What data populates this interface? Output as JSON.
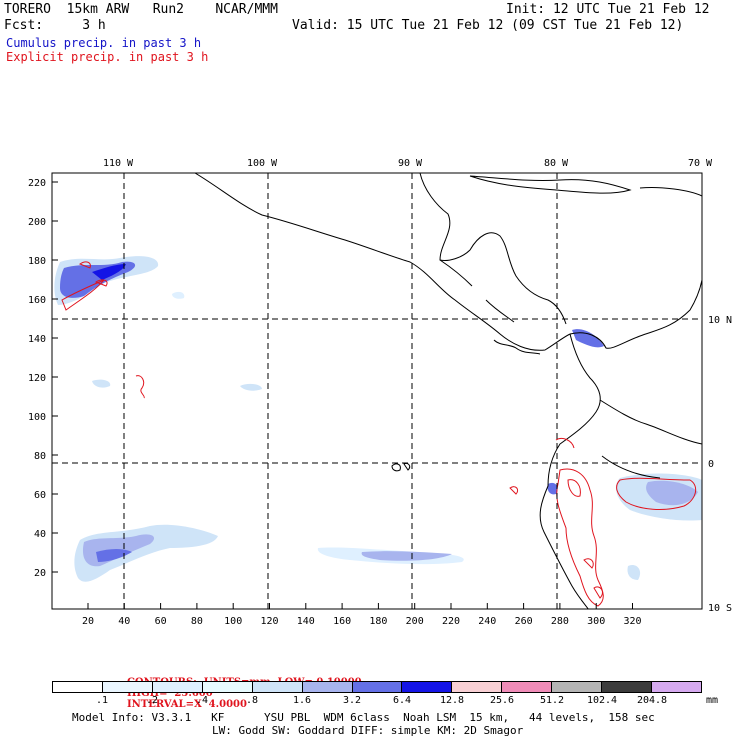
{
  "header": {
    "model": "TORERO  15km ARW   Run2    NCAR/MMM",
    "init": "Init: 12 UTC Tue 21 Feb 12",
    "fcst": "Fcst:     3 h",
    "valid": "Valid: 15 UTC Tue 21 Feb 12 (09 CST Tue 21 Feb 12)",
    "cumulus_label": "Cumulus precip. in past 3 h",
    "explicit_label": "Explicit precip. in past 3 h",
    "cumulus_color": "#1414c8",
    "explicit_color": "#e0141e"
  },
  "map": {
    "lon_labels": [
      "110 W",
      "100 W",
      "90 W",
      "80 W",
      "70 W"
    ],
    "lat_labels": [
      "10 N",
      "0",
      "10 S"
    ],
    "y_ticks": [
      "220",
      "200",
      "180",
      "160",
      "140",
      "120",
      "100",
      "80",
      "60",
      "40",
      "20"
    ],
    "x_ticks": [
      "20",
      "40",
      "60",
      "80",
      "100",
      "120",
      "140",
      "160",
      "180",
      "200",
      "220",
      "240",
      "260",
      "280",
      "300",
      "320"
    ]
  },
  "contours": {
    "units": "CONTOURS:  UNITS=mm  LOW= 0.10000",
    "high": "HIGH=  25.600",
    "interval": "INTERVAL=X  4.0000"
  },
  "colorbar": {
    "labels": [
      ".1",
      ".2",
      ".4",
      ".8",
      "1.6",
      "3.2",
      "6.4",
      "12.8",
      "25.6",
      "51.2",
      "102.4",
      "204.8"
    ],
    "unit": "mm",
    "colors": [
      "#ffffff",
      "#eaf6ff",
      "#dff0ff",
      "#e8fbff",
      "#cfe4f8",
      "#a8b4ee",
      "#6470e6",
      "#1414e6",
      "#f8d0d4",
      "#f08cb8",
      "#b4b4b4",
      "#3c3c3c",
      "#d6aaf0"
    ]
  },
  "footer": {
    "line1": "Model Info: V3.3.1   KF      YSU PBL  WDM 6class  Noah LSM  15 km,   44 levels,  158 sec",
    "line2": "LW: Godd SW: Goddard DIFF: simple KM: 2D Smagor"
  }
}
